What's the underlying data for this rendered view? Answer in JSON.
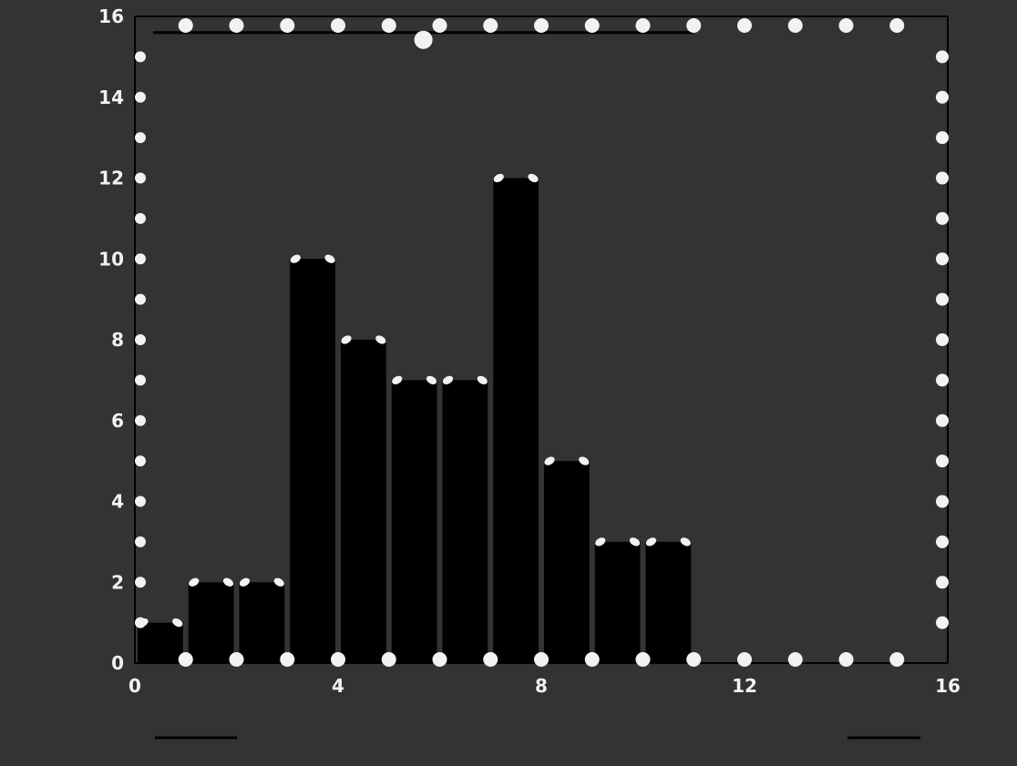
{
  "chart_data": {
    "type": "bar",
    "title": "",
    "ylabel": "",
    "xlabel": "",
    "bins": [
      {
        "x0": 0,
        "x1": 1,
        "value": 1
      },
      {
        "x0": 1,
        "x1": 2,
        "value": 2
      },
      {
        "x0": 2,
        "x1": 3,
        "value": 2
      },
      {
        "x0": 3,
        "x1": 4,
        "value": 10
      },
      {
        "x0": 4,
        "x1": 5,
        "value": 8
      },
      {
        "x0": 5,
        "x1": 6,
        "value": 7
      },
      {
        "x0": 6,
        "x1": 7,
        "value": 7
      },
      {
        "x0": 7,
        "x1": 8,
        "value": 12
      },
      {
        "x0": 8,
        "x1": 9,
        "value": 5
      },
      {
        "x0": 9,
        "x1": 10,
        "value": 3
      },
      {
        "x0": 10,
        "x1": 11,
        "value": 3
      }
    ],
    "xlim": [
      0,
      16
    ],
    "ylim": [
      0,
      16
    ],
    "x_ticks": [
      0,
      4,
      8,
      12,
      16
    ],
    "x_tick_labels": [
      "0",
      "4",
      "8",
      "12",
      "16"
    ],
    "y_ticks": [
      0,
      2,
      4,
      6,
      8,
      10,
      12,
      14,
      16
    ],
    "y_tick_labels": [
      "0",
      "2",
      "4",
      "6",
      "8",
      "10",
      "12",
      "14",
      "16"
    ],
    "grid": false,
    "top_annotations": {
      "left": "",
      "right": ""
    },
    "bottom_annotations": {
      "left": "",
      "right": ""
    }
  },
  "colors": {
    "background": "#333333",
    "bar_fill": "#000000",
    "axis": "#000000",
    "tick_marker": "#f2f2f2"
  }
}
